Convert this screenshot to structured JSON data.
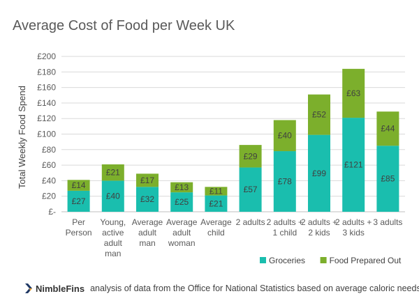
{
  "chart_data": {
    "type": "bar",
    "stacked": true,
    "title": "Average Cost of Food per Week UK",
    "xlabel": "",
    "ylabel": "Total Weekly Food Spend",
    "ylim": [
      0,
      200
    ],
    "yticks": [
      0,
      20,
      40,
      60,
      80,
      100,
      120,
      140,
      160,
      180,
      200
    ],
    "ytick_labels": [
      "£-",
      "£20",
      "£40",
      "£60",
      "£80",
      "£100",
      "£120",
      "£140",
      "£160",
      "£180",
      "£200"
    ],
    "grid": true,
    "legend_position": "bottom-right",
    "categories": [
      [
        "Per",
        "Person"
      ],
      [
        "Young,",
        "active",
        "adult",
        "man"
      ],
      [
        "Average",
        "adult",
        "man"
      ],
      [
        "Average",
        "adult",
        "woman"
      ],
      [
        "Average",
        "child"
      ],
      [
        "2 adults"
      ],
      [
        "2 adults +",
        "1 child"
      ],
      [
        "2 adults +",
        "2 kids"
      ],
      [
        "2 adults +",
        "3 kids"
      ],
      [
        "3 adults"
      ]
    ],
    "series": [
      {
        "name": "Groceries",
        "color": "#1ABEAE",
        "values": [
          27,
          40,
          32,
          25,
          21,
          57,
          78,
          99,
          121,
          85
        ],
        "labels": [
          "£27",
          "£40",
          "£32",
          "£25",
          "£21",
          "£57",
          "£78",
          "£99",
          "£121",
          "£85"
        ]
      },
      {
        "name": "Food Prepared Out",
        "color": "#7CAF2C",
        "values": [
          14,
          21,
          17,
          13,
          11,
          29,
          40,
          52,
          63,
          44
        ],
        "labels": [
          "£14",
          "£21",
          "£17",
          "£13",
          "£11",
          "£29",
          "£40",
          "£52",
          "£63",
          "£44"
        ]
      }
    ]
  },
  "footer": {
    "brand": "NimbleFins",
    "note": "analysis of data from the Office for National Statistics based on average caloric needs",
    "logo_colors": [
      "#1F3864",
      "#E8A23A"
    ]
  }
}
